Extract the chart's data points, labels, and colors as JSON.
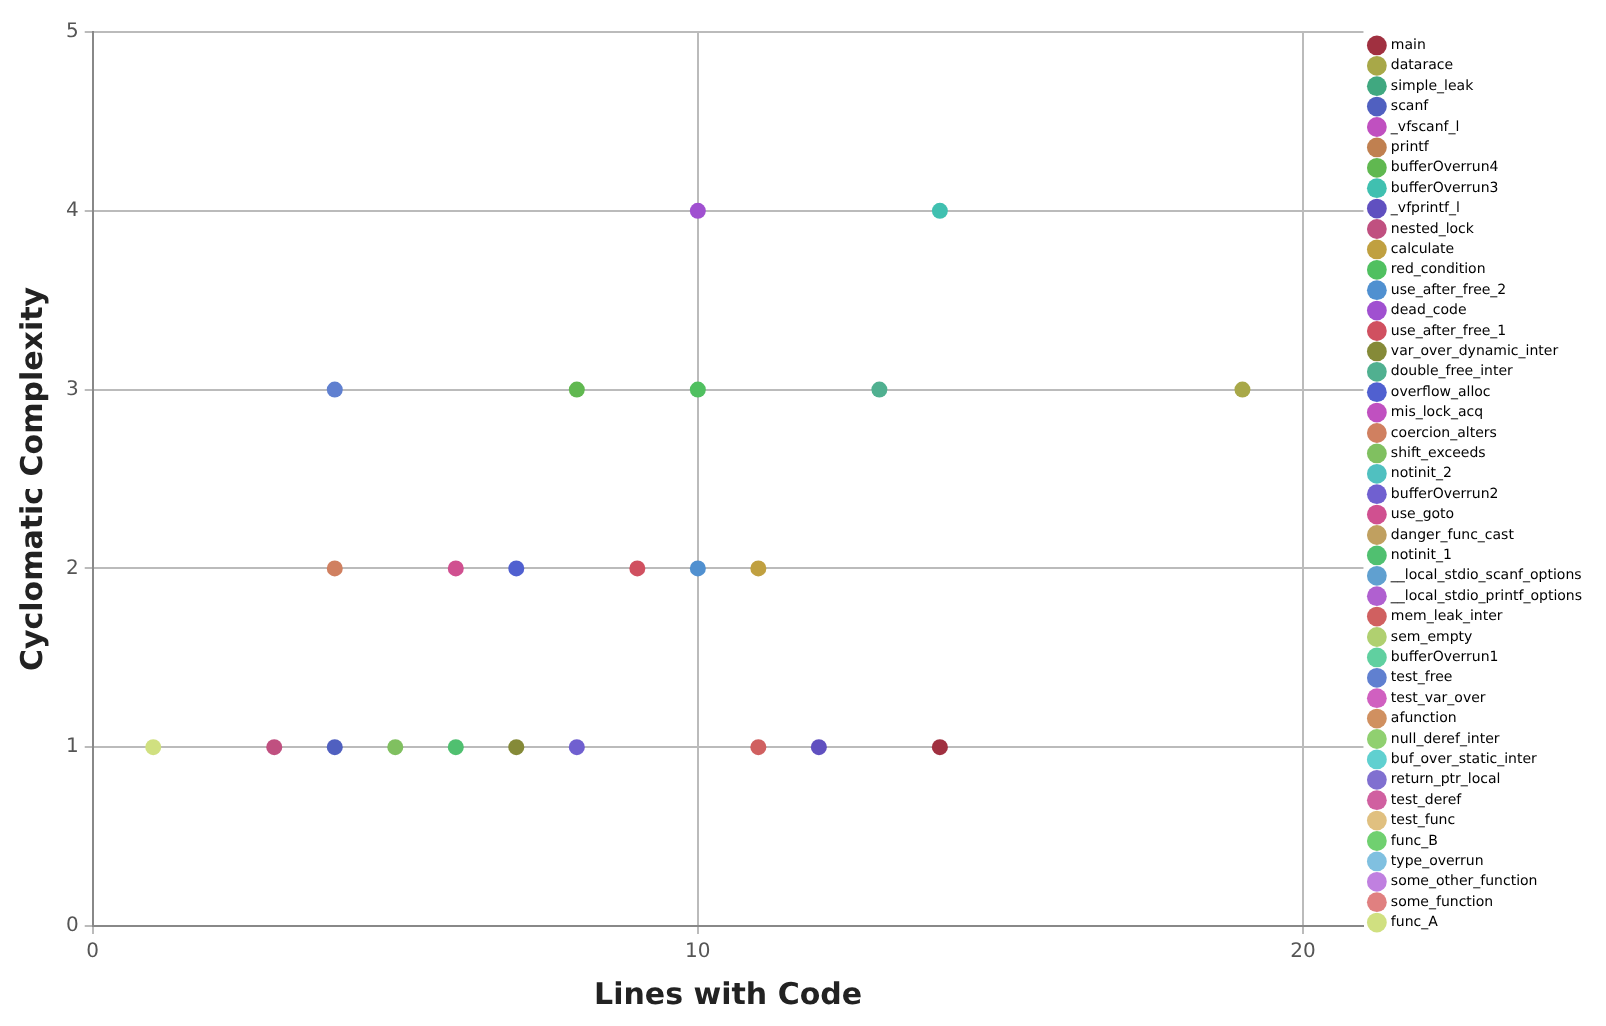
{
  "chart_data": {
    "type": "scatter",
    "xlabel": "Lines with Code",
    "ylabel": "Cyclomatic Complexity",
    "xlim": [
      0,
      21
    ],
    "xticks": [
      0,
      10,
      20
    ],
    "ylim": [
      0,
      5
    ],
    "yticks": [
      0,
      1,
      2,
      3,
      4,
      5
    ],
    "grid": true,
    "legend": "right",
    "marker": "circle",
    "series": [
      {
        "name": "main",
        "color": "#a03040",
        "x": [
          14
        ],
        "values": [
          1
        ]
      },
      {
        "name": "datarace",
        "color": "#a8a848",
        "x": [
          19
        ],
        "values": [
          3
        ]
      },
      {
        "name": "simple_leak",
        "color": "#40a880",
        "x": [
          null
        ],
        "values": [
          null
        ]
      },
      {
        "name": "scanf",
        "color": "#5060c0",
        "x": [
          4
        ],
        "values": [
          1
        ]
      },
      {
        "name": "_vfscanf_l",
        "color": "#c050c0",
        "x": [
          null
        ],
        "values": [
          null
        ]
      },
      {
        "name": "printf",
        "color": "#c08050",
        "x": [
          null
        ],
        "values": [
          null
        ]
      },
      {
        "name": "bufferOverrun4",
        "color": "#60b850",
        "x": [
          8
        ],
        "values": [
          3
        ]
      },
      {
        "name": "bufferOverrun3",
        "color": "#40c0b0",
        "x": [
          14
        ],
        "values": [
          4
        ]
      },
      {
        "name": "_vfprintf_l",
        "color": "#6050c0",
        "x": [
          12
        ],
        "values": [
          1
        ]
      },
      {
        "name": "nested_lock",
        "color": "#c05080",
        "x": [
          3
        ],
        "values": [
          1
        ]
      },
      {
        "name": "calculate",
        "color": "#c0a040",
        "x": [
          11
        ],
        "values": [
          2
        ]
      },
      {
        "name": "red_condition",
        "color": "#50c060",
        "x": [
          10
        ],
        "values": [
          3
        ]
      },
      {
        "name": "use_after_free_2",
        "color": "#5090d0",
        "x": [
          10
        ],
        "values": [
          2
        ]
      },
      {
        "name": "dead_code",
        "color": "#a050d0",
        "x": [
          10
        ],
        "values": [
          4
        ]
      },
      {
        "name": "use_after_free_1",
        "color": "#d05060",
        "x": [
          9
        ],
        "values": [
          2
        ]
      },
      {
        "name": "var_over_dynamic_inter",
        "color": "#858a38",
        "x": [
          7
        ],
        "values": [
          1
        ]
      },
      {
        "name": "double_free_inter",
        "color": "#50b090",
        "x": [
          13
        ],
        "values": [
          3
        ]
      },
      {
        "name": "overflow_alloc",
        "color": "#5060d0",
        "x": [
          7
        ],
        "values": [
          2
        ]
      },
      {
        "name": "mis_lock_acq",
        "color": "#c050c0",
        "x": [
          null
        ],
        "values": [
          null
        ]
      },
      {
        "name": "coercion_alters",
        "color": "#d08060",
        "x": [
          4
        ],
        "values": [
          2
        ]
      },
      {
        "name": "shift_exceeds",
        "color": "#80c060",
        "x": [
          5
        ],
        "values": [
          1
        ]
      },
      {
        "name": "notinit_2",
        "color": "#50c0c0",
        "x": [
          null
        ],
        "values": [
          null
        ]
      },
      {
        "name": "bufferOverrun2",
        "color": "#7060d0",
        "x": [
          8
        ],
        "values": [
          1
        ]
      },
      {
        "name": "use_goto",
        "color": "#d05090",
        "x": [
          6
        ],
        "values": [
          2
        ]
      },
      {
        "name": "danger_func_cast",
        "color": "#c0a060",
        "x": [
          null
        ],
        "values": [
          null
        ]
      },
      {
        "name": "notinit_1",
        "color": "#50c070",
        "x": [
          6
        ],
        "values": [
          1
        ]
      },
      {
        "name": "__local_stdio_scanf_options",
        "color": "#60a0d0",
        "x": [
          null
        ],
        "values": [
          null
        ]
      },
      {
        "name": "__local_stdio_printf_options",
        "color": "#b060d0",
        "x": [
          null
        ],
        "values": [
          null
        ]
      },
      {
        "name": "mem_leak_inter",
        "color": "#d06060",
        "x": [
          11
        ],
        "values": [
          1
        ]
      },
      {
        "name": "sem_empty",
        "color": "#b0d070",
        "x": [
          null
        ],
        "values": [
          null
        ]
      },
      {
        "name": "bufferOverrun1",
        "color": "#60d0a0",
        "x": [
          null
        ],
        "values": [
          null
        ]
      },
      {
        "name": "test_free",
        "color": "#6080d0",
        "x": [
          4
        ],
        "values": [
          3
        ]
      },
      {
        "name": "test_var_over",
        "color": "#d060c0",
        "x": [
          null
        ],
        "values": [
          null
        ]
      },
      {
        "name": "afunction",
        "color": "#d09060",
        "x": [
          null
        ],
        "values": [
          null
        ]
      },
      {
        "name": "null_deref_inter",
        "color": "#90d070",
        "x": [
          null
        ],
        "values": [
          null
        ]
      },
      {
        "name": "buf_over_static_inter",
        "color": "#60d0d0",
        "x": [
          null
        ],
        "values": [
          null
        ]
      },
      {
        "name": "return_ptr_local",
        "color": "#8070d0",
        "x": [
          null
        ],
        "values": [
          null
        ]
      },
      {
        "name": "test_deref",
        "color": "#d060a0",
        "x": [
          null
        ],
        "values": [
          null
        ]
      },
      {
        "name": "test_func",
        "color": "#e0c080",
        "x": [
          null
        ],
        "values": [
          null
        ]
      },
      {
        "name": "func_B",
        "color": "#70d070",
        "x": [
          null
        ],
        "values": [
          null
        ]
      },
      {
        "name": "type_overrun",
        "color": "#80c0e0",
        "x": [
          null
        ],
        "values": [
          null
        ]
      },
      {
        "name": "some_other_function",
        "color": "#c080e0",
        "x": [
          null
        ],
        "values": [
          null
        ]
      },
      {
        "name": "some_function",
        "color": "#e08080",
        "x": [
          null
        ],
        "values": [
          null
        ]
      },
      {
        "name": "func_A",
        "color": "#d0e080",
        "x": [
          1
        ],
        "values": [
          1
        ]
      }
    ]
  }
}
